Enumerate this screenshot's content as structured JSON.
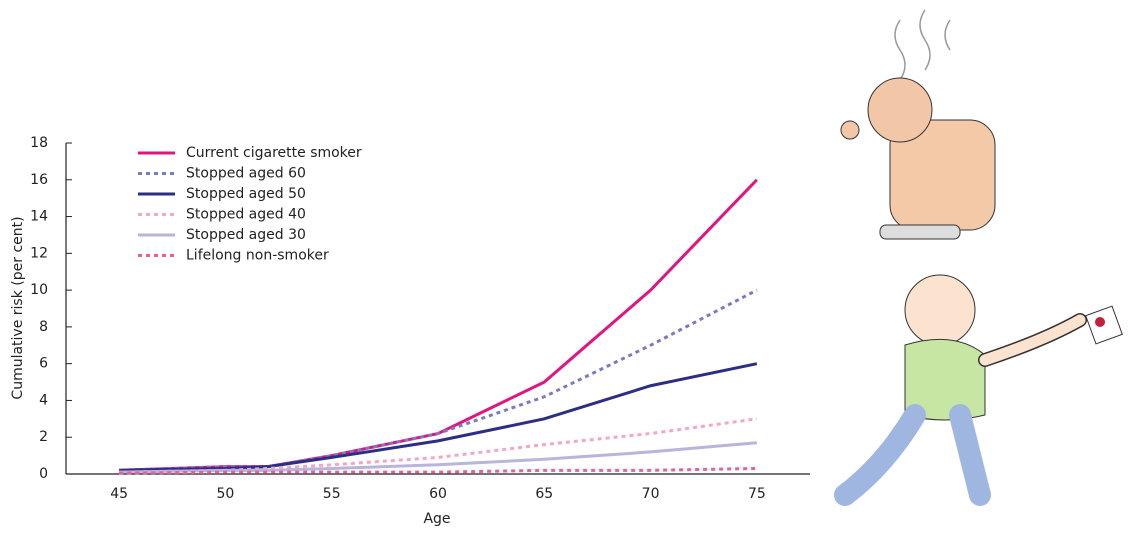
{
  "chart_data": {
    "type": "line",
    "x_label": "Age",
    "y_label": "Cumulative risk (per cent)",
    "x": [
      45,
      50,
      52,
      55,
      60,
      65,
      70,
      75
    ],
    "series": [
      {
        "name": "Current cigarette smoker",
        "color": "#e0157f",
        "dashed": false,
        "values": [
          0.2,
          0.4,
          0.4,
          1.0,
          2.2,
          5.0,
          10.0,
          16.0
        ]
      },
      {
        "name": "Stopped aged 60",
        "color": "#7a7ac0",
        "dashed": true,
        "values": [
          0.2,
          0.4,
          0.4,
          1.0,
          2.2,
          4.2,
          7.0,
          10.0
        ]
      },
      {
        "name": "Stopped aged 50",
        "color": "#2b2e85",
        "dashed": false,
        "values": [
          0.2,
          0.3,
          0.4,
          0.9,
          1.8,
          3.0,
          4.8,
          6.0
        ]
      },
      {
        "name": "Stopped aged 40",
        "color": "#f4a6c4",
        "dashed": true,
        "values": [
          0.1,
          0.2,
          0.3,
          0.5,
          0.9,
          1.6,
          2.2,
          3.0
        ]
      },
      {
        "name": "Stopped aged 30",
        "color": "#b8b4dc",
        "dashed": false,
        "values": [
          0.1,
          0.2,
          0.2,
          0.3,
          0.5,
          0.8,
          1.2,
          1.7
        ]
      },
      {
        "name": "Lifelong non-smoker",
        "color": "#e8609a",
        "dashed": true,
        "values": [
          0.05,
          0.1,
          0.1,
          0.1,
          0.1,
          0.2,
          0.2,
          0.3
        ]
      }
    ],
    "xlim": [
      42.5,
      77.5
    ],
    "xticks": [
      45,
      50,
      55,
      60,
      65,
      70,
      75
    ],
    "ylim": [
      0,
      18
    ],
    "yticks": [
      0,
      2,
      4,
      6,
      8,
      10,
      12,
      14,
      16,
      18
    ],
    "grid": false
  }
}
